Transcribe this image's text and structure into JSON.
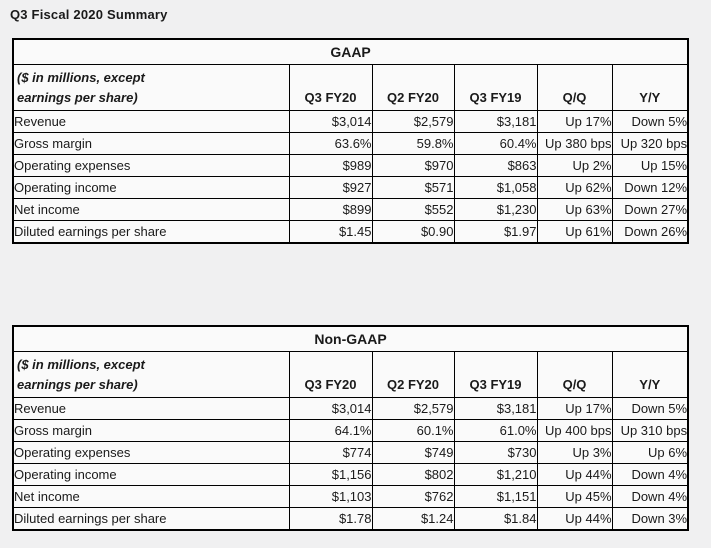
{
  "page": {
    "title": "Q3 Fiscal 2020 Summary"
  },
  "colors": {
    "page_bg": "#f0f0f1",
    "cell_bg": "#fafafa",
    "border": "#000000",
    "text": "#1a1a1a"
  },
  "tables": [
    {
      "title": "GAAP",
      "unit_note_line1": "($ in millions, except",
      "unit_note_line2": "earnings per share)",
      "columns": [
        "Q3 FY20",
        "Q2 FY20",
        "Q3 FY19",
        "Q/Q",
        "Y/Y"
      ],
      "rows": [
        {
          "label": "Revenue",
          "values": [
            "$3,014",
            "$2,579",
            "$3,181",
            "Up 17%",
            "Down 5%"
          ]
        },
        {
          "label": "Gross margin",
          "values": [
            "63.6%",
            "59.8%",
            "60.4%",
            "Up 380 bps",
            "Up 320 bps"
          ]
        },
        {
          "label": "Operating expenses",
          "values": [
            "$989",
            "$970",
            "$863",
            "Up 2%",
            "Up 15%"
          ]
        },
        {
          "label": "Operating income",
          "values": [
            "$927",
            "$571",
            "$1,058",
            "Up 62%",
            "Down 12%"
          ]
        },
        {
          "label": "Net income",
          "values": [
            "$899",
            "$552",
            "$1,230",
            "Up 63%",
            "Down 27%"
          ]
        },
        {
          "label": "Diluted earnings per share",
          "values": [
            "$1.45",
            "$0.90",
            "$1.97",
            "Up 61%",
            "Down 26%"
          ]
        }
      ]
    },
    {
      "title": "Non-GAAP",
      "unit_note_line1": "($ in millions, except",
      "unit_note_line2": "earnings per share)",
      "columns": [
        "Q3 FY20",
        "Q2 FY20",
        "Q3 FY19",
        "Q/Q",
        "Y/Y"
      ],
      "rows": [
        {
          "label": "Revenue",
          "values": [
            "$3,014",
            "$2,579",
            "$3,181",
            "Up 17%",
            "Down 5%"
          ]
        },
        {
          "label": "Gross margin",
          "values": [
            "64.1%",
            "60.1%",
            "61.0%",
            "Up 400 bps",
            "Up 310 bps"
          ]
        },
        {
          "label": "Operating expenses",
          "values": [
            "$774",
            "$749",
            "$730",
            "Up 3%",
            "Up 6%"
          ]
        },
        {
          "label": "Operating income",
          "values": [
            "$1,156",
            "$802",
            "$1,210",
            "Up 44%",
            "Down 4%"
          ]
        },
        {
          "label": "Net income",
          "values": [
            "$1,103",
            "$762",
            "$1,151",
            "Up 45%",
            "Down 4%"
          ]
        },
        {
          "label": "Diluted earnings per share",
          "values": [
            "$1.78",
            "$1.24",
            "$1.84",
            "Up 44%",
            "Down 3%"
          ]
        }
      ]
    }
  ]
}
